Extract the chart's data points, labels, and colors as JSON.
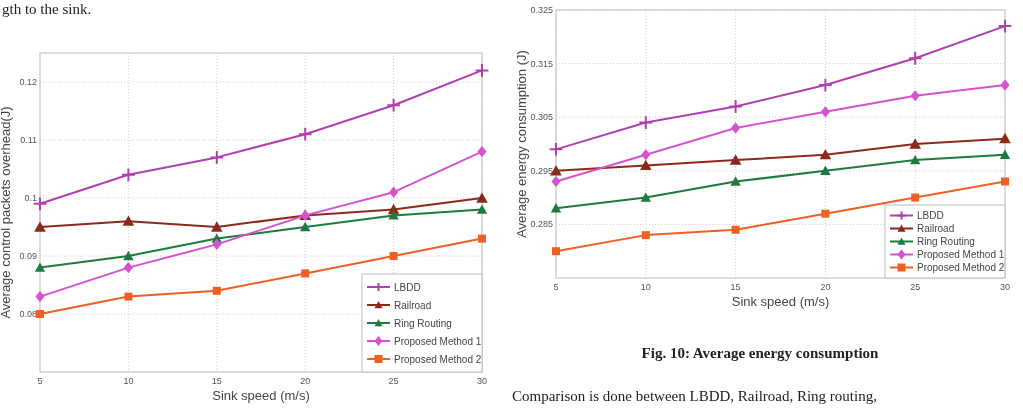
{
  "chart_data": [
    {
      "type": "line",
      "xlabel": "Sink speed (m/s)",
      "ylabel": "Average control packets overhead(J)",
      "x": [
        5,
        10,
        15,
        20,
        25,
        30
      ],
      "xlim": [
        5,
        30
      ],
      "xticks": [
        5,
        10,
        15,
        20,
        25,
        30
      ],
      "ylim": [
        0.07,
        0.125
      ],
      "yticks": [
        0.08,
        0.09,
        0.1,
        0.11,
        0.12
      ],
      "grid": true,
      "legend": "bottom right",
      "annotations": [
        "gth to the sink."
      ],
      "series": [
        {
          "name": "LBDD",
          "color": "#b03fb0",
          "marker": "cross",
          "values": [
            0.099,
            0.104,
            0.107,
            0.111,
            0.116,
            0.122
          ]
        },
        {
          "name": "Railroad",
          "color": "#8b2a1a",
          "marker": "triangle",
          "values": [
            0.095,
            0.096,
            0.095,
            0.097,
            0.098,
            0.1
          ]
        },
        {
          "name": "Ring Routing",
          "color": "#1e7a3e",
          "marker": "triangle",
          "values": [
            0.088,
            0.09,
            0.093,
            0.095,
            0.097,
            0.098
          ]
        },
        {
          "name": "Proposed Method 1",
          "color": "#d652cf",
          "marker": "diamond",
          "values": [
            0.083,
            0.088,
            0.092,
            0.097,
            0.101,
            0.108
          ]
        },
        {
          "name": "Proposed Method 2",
          "color": "#f06020",
          "marker": "square",
          "values": [
            0.08,
            0.083,
            0.084,
            0.087,
            0.09,
            0.093
          ]
        }
      ]
    },
    {
      "type": "line",
      "xlabel": "Sink speed (m/s)",
      "ylabel": "Average energy consumption (J)",
      "x": [
        5,
        10,
        15,
        20,
        25,
        30
      ],
      "xlim": [
        5,
        30
      ],
      "xticks": [
        5,
        10,
        15,
        20,
        25,
        30
      ],
      "ylim": [
        0.275,
        0.325
      ],
      "yticks": [
        0.285,
        0.295,
        0.305,
        0.315,
        0.325
      ],
      "grid": true,
      "legend": "bottom right",
      "annotations": [
        "Fig. 10: Average energy consumption",
        "Comparison is done between LBDD, Railroad, Ring routing,"
      ],
      "series": [
        {
          "name": "LBDD",
          "color": "#b03fb0",
          "marker": "cross",
          "values": [
            0.299,
            0.304,
            0.307,
            0.311,
            0.316,
            0.322
          ]
        },
        {
          "name": "Railroad",
          "color": "#8b2a1a",
          "marker": "triangle",
          "values": [
            0.295,
            0.296,
            0.297,
            0.298,
            0.3,
            0.301
          ]
        },
        {
          "name": "Ring Routing",
          "color": "#1e7a3e",
          "marker": "triangle",
          "values": [
            0.288,
            0.29,
            0.293,
            0.295,
            0.297,
            0.298
          ]
        },
        {
          "name": "Proposed Method 1",
          "color": "#d652cf",
          "marker": "diamond",
          "values": [
            0.293,
            0.298,
            0.303,
            0.306,
            0.309,
            0.311
          ]
        },
        {
          "name": "Proposed Method 2",
          "color": "#f06020",
          "marker": "square",
          "values": [
            0.28,
            0.283,
            0.284,
            0.287,
            0.29,
            0.293
          ]
        }
      ]
    }
  ]
}
